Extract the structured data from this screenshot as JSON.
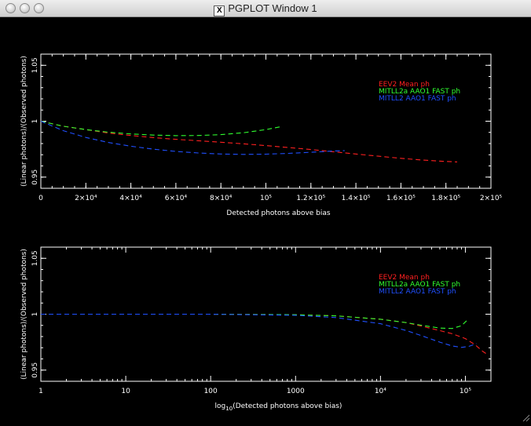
{
  "window": {
    "title": "PGPLOT Window 1",
    "controls": [
      "close",
      "minimize",
      "zoom"
    ]
  },
  "chart_data": [
    {
      "type": "line",
      "xlabel": "Detected photons above bias",
      "ylabel": "(Linear photons)/(Observed photons)",
      "xlim": [
        0,
        200000
      ],
      "ylim": [
        0.94,
        1.06
      ],
      "x_tick_labels": [
        "0",
        "2×10⁴",
        "4×10⁴",
        "6×10⁴",
        "8×10⁴",
        "10⁵",
        "1.2×10⁵",
        "1.4×10⁵",
        "1.6×10⁵",
        "1.8×10⁵",
        "2×10⁵"
      ],
      "y_tick_labels": [
        "0.95",
        "1",
        "1.05"
      ],
      "legend_position": "top-right",
      "series": [
        {
          "name": "EEV2 Mean    ph",
          "color": "#ff2020",
          "x": [
            0,
            10000,
            20000,
            30000,
            40000,
            50000,
            60000,
            70000,
            80000,
            90000,
            100000,
            110000,
            120000,
            130000,
            140000,
            150000,
            160000,
            170000,
            180000,
            185000
          ],
          "y": [
            1.0,
            0.9955,
            0.9925,
            0.9895,
            0.9872,
            0.9853,
            0.9838,
            0.9825,
            0.9812,
            0.9798,
            0.9782,
            0.9765,
            0.9747,
            0.9727,
            0.9707,
            0.9687,
            0.9668,
            0.9652,
            0.964,
            0.9636
          ]
        },
        {
          "name": "MITLL2a AAO1  FAST ph",
          "color": "#30ff30",
          "x": [
            0,
            10000,
            20000,
            30000,
            40000,
            50000,
            60000,
            70000,
            80000,
            90000,
            100000,
            107000
          ],
          "y": [
            1.0,
            0.9955,
            0.9925,
            0.9902,
            0.9886,
            0.9876,
            0.9871,
            0.9872,
            0.988,
            0.9897,
            0.9925,
            0.9952
          ]
        },
        {
          "name": "MITLL2 AAO1  FAST ph",
          "color": "#2050ff",
          "x": [
            0,
            10000,
            20000,
            30000,
            40000,
            50000,
            60000,
            70000,
            80000,
            90000,
            100000,
            110000,
            120000,
            130000,
            135000
          ],
          "y": [
            1.0,
            0.9915,
            0.9855,
            0.981,
            0.9776,
            0.975,
            0.973,
            0.9716,
            0.9707,
            0.9703,
            0.9705,
            0.9712,
            0.9722,
            0.9733,
            0.9737
          ]
        }
      ]
    },
    {
      "type": "line",
      "xlabel": "log₁₀(Detected photons above bias)",
      "xlabel_main": "(Detected photons above bias)",
      "xlabel_prefix": "log",
      "xlabel_sub": "10",
      "ylabel": "(Linear photons)/(Observed photons)",
      "x_scale": "log",
      "xlim": [
        1,
        200000
      ],
      "ylim": [
        0.94,
        1.06
      ],
      "x_tick_labels": [
        "1",
        "10",
        "100",
        "1000",
        "10⁴",
        "10⁵"
      ],
      "y_tick_labels": [
        "0.95",
        "1",
        "1.05"
      ],
      "legend_position": "top-right",
      "series": [
        {
          "name": "EEV2 Mean    ph",
          "color": "#ff2020",
          "x": [
            1,
            10,
            100,
            1000,
            3000,
            10000,
            20000,
            30000,
            50000,
            70000,
            100000,
            130000,
            160000,
            185000
          ],
          "y": [
            1.0,
            1.0,
            1.0,
            0.9995,
            0.9985,
            0.9955,
            0.9925,
            0.9895,
            0.9853,
            0.9825,
            0.9782,
            0.9727,
            0.9668,
            0.9636
          ]
        },
        {
          "name": "MITLL2a AAO1  FAST ph",
          "color": "#30ff30",
          "x": [
            1,
            10,
            100,
            1000,
            3000,
            10000,
            20000,
            30000,
            50000,
            70000,
            90000,
            107000
          ],
          "y": [
            1.0,
            1.0,
            1.0,
            0.9995,
            0.9985,
            0.9955,
            0.9925,
            0.9902,
            0.9876,
            0.9872,
            0.9897,
            0.9952
          ]
        },
        {
          "name": "MITLL2 AAO1  FAST ph",
          "color": "#2050ff",
          "x": [
            1,
            10,
            100,
            1000,
            3000,
            10000,
            20000,
            30000,
            50000,
            70000,
            90000,
            110000,
            135000
          ],
          "y": [
            1.0,
            1.0,
            1.0,
            0.999,
            0.997,
            0.9915,
            0.9855,
            0.981,
            0.975,
            0.9716,
            0.9703,
            0.9712,
            0.9737
          ]
        }
      ]
    }
  ]
}
